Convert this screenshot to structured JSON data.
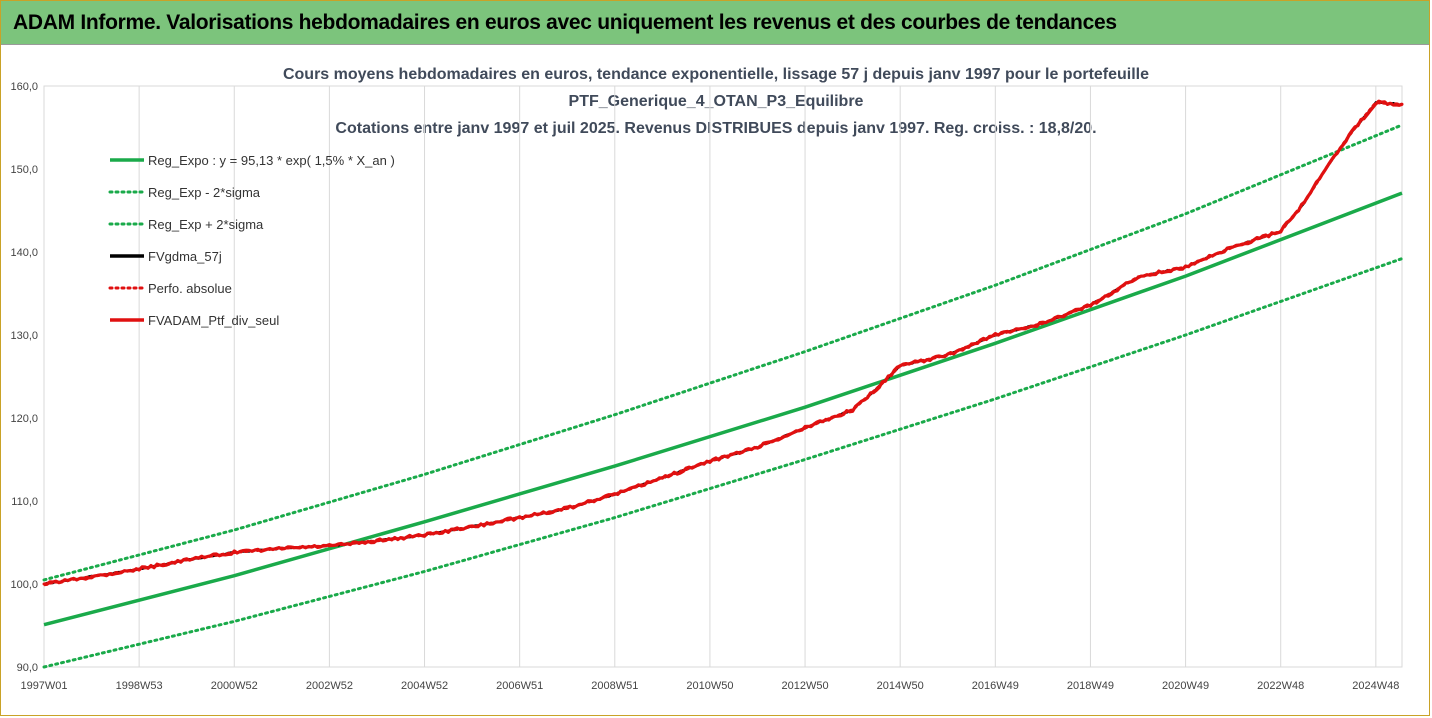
{
  "header": {
    "title": "ADAM Informe. Valorisations hebdomadaires en euros avec uniquement les revenus et des courbes de tendances"
  },
  "chart_data": {
    "type": "line",
    "title_lines": [
      "Cours moyens hebdomadaires  en euros, tendance exponentielle, lissage 57 j depuis janv 1997 pour le portefeuille",
      "PTF_Generique_4_OTAN_P3_Equilibre",
      "Cotations  entre janv 1997 et juil 2025. Revenus DISTRIBUES depuis janv 1997. Reg. croiss. : 18,8/20."
    ],
    "xlabel": "",
    "ylabel": "",
    "x_tick_labels": [
      "1997W01",
      "1998W53",
      "2000W52",
      "2002W52",
      "2004W52",
      "2006W51",
      "2008W51",
      "2010W50",
      "2012W50",
      "2014W50",
      "2016W49",
      "2018W49",
      "2020W49",
      "2022W48",
      "2024W48"
    ],
    "x_tick_years": [
      1997.0,
      1999.0,
      2001.0,
      2003.0,
      2005.0,
      2007.0,
      2009.0,
      2011.0,
      2013.0,
      2015.0,
      2017.0,
      2019.0,
      2021.0,
      2023.0,
      2025.0
    ],
    "xlim": [
      1997.0,
      2025.55
    ],
    "ylim": [
      90,
      160
    ],
    "y_ticks": [
      90,
      100,
      110,
      120,
      130,
      140,
      150,
      160
    ],
    "y_tick_labels": [
      "90,0",
      "100,0",
      "110,0",
      "120,0",
      "130,0",
      "140,0",
      "150,0",
      "160,0"
    ],
    "grid": "vertical",
    "legend_position": "top-left",
    "series": [
      {
        "name": "Reg_Expo : y = 95,13 * exp( 1,5% *  X_an )",
        "color": "#1aaa4a",
        "style": "solid",
        "x": [
          1997.0,
          2001.0,
          2005.0,
          2009.0,
          2013.0,
          2017.0,
          2021.0,
          2025.55
        ],
        "y": [
          95.1,
          101.0,
          107.5,
          114.2,
          121.3,
          129.0,
          137.1,
          147.1
        ]
      },
      {
        "name": "Reg_Exp - 2*sigma",
        "color": "#1aaa4a",
        "style": "dotted",
        "x": [
          1997.0,
          2001.0,
          2005.0,
          2009.0,
          2013.0,
          2017.0,
          2021.0,
          2025.55
        ],
        "y": [
          90.0,
          95.5,
          101.5,
          108.0,
          115.0,
          122.3,
          130.0,
          139.2
        ]
      },
      {
        "name": "Reg_Exp + 2*sigma",
        "color": "#1aaa4a",
        "style": "dotted",
        "x": [
          1997.0,
          2001.0,
          2005.0,
          2009.0,
          2013.0,
          2017.0,
          2021.0,
          2025.55
        ],
        "y": [
          100.5,
          106.5,
          113.2,
          120.4,
          128.0,
          136.0,
          144.6,
          155.3
        ]
      },
      {
        "name": "FVgdma_57j",
        "color": "#000000",
        "style": "solid",
        "x": [
          1997.0,
          1998.0,
          1999.0,
          2000.0,
          2001.0,
          2002.0,
          2003.0,
          2004.0,
          2005.0,
          2006.0,
          2007.0,
          2008.0,
          2009.0,
          2010.0,
          2011.0,
          2012.0,
          2013.0,
          2014.0,
          2014.5,
          2015.0,
          2016.0,
          2017.0,
          2018.0,
          2019.0,
          2020.0,
          2021.0,
          2022.0,
          2023.0,
          2023.5,
          2024.0,
          2024.5,
          2025.0,
          2025.55
        ],
        "y": [
          100.0,
          100.9,
          101.8,
          102.9,
          103.8,
          104.3,
          104.6,
          105.2,
          105.9,
          106.9,
          108.0,
          109.1,
          110.8,
          112.8,
          114.8,
          116.5,
          118.8,
          121.0,
          123.5,
          126.3,
          127.6,
          130.0,
          131.4,
          133.6,
          137.0,
          138.2,
          140.6,
          142.5,
          146.0,
          150.5,
          154.5,
          158.0,
          157.8
        ]
      },
      {
        "name": "Perfo. absolue",
        "color": "#e01010",
        "style": "dotted",
        "x": [
          1997.0,
          1998.0,
          1999.0,
          2000.0,
          2001.0,
          2002.0,
          2003.0,
          2004.0,
          2005.0,
          2006.0,
          2007.0,
          2008.0,
          2009.0,
          2010.0,
          2011.0,
          2012.0,
          2013.0,
          2014.0,
          2014.5,
          2015.0,
          2016.0,
          2017.0,
          2018.0,
          2019.0,
          2020.0,
          2021.0,
          2022.0,
          2023.0,
          2023.5,
          2024.0,
          2024.5,
          2025.0,
          2025.55
        ],
        "y": [
          100.0,
          100.9,
          101.8,
          102.9,
          103.8,
          104.3,
          104.6,
          105.2,
          105.9,
          106.9,
          108.0,
          109.1,
          110.8,
          112.8,
          114.8,
          116.5,
          118.8,
          121.0,
          123.5,
          126.3,
          127.6,
          130.0,
          131.4,
          133.6,
          137.0,
          138.2,
          140.6,
          142.5,
          146.0,
          150.5,
          154.5,
          158.0,
          157.8
        ]
      },
      {
        "name": "FVADAM_Ptf_div_seul",
        "color": "#e01010",
        "style": "solid",
        "x": [
          1997.0,
          1998.0,
          1999.0,
          2000.0,
          2001.0,
          2002.0,
          2003.0,
          2004.0,
          2005.0,
          2006.0,
          2007.0,
          2008.0,
          2009.0,
          2010.0,
          2011.0,
          2012.0,
          2013.0,
          2014.0,
          2014.5,
          2015.0,
          2016.0,
          2017.0,
          2018.0,
          2019.0,
          2020.0,
          2021.0,
          2022.0,
          2023.0,
          2023.5,
          2024.0,
          2024.5,
          2025.0,
          2025.55
        ],
        "y": [
          100.0,
          100.9,
          101.8,
          102.9,
          103.8,
          104.3,
          104.6,
          105.2,
          105.9,
          106.9,
          108.0,
          109.1,
          110.8,
          112.8,
          114.8,
          116.5,
          118.8,
          121.0,
          123.5,
          126.3,
          127.6,
          130.0,
          131.4,
          133.6,
          137.0,
          138.2,
          140.6,
          142.5,
          146.0,
          150.5,
          154.5,
          158.0,
          157.8
        ]
      }
    ]
  }
}
